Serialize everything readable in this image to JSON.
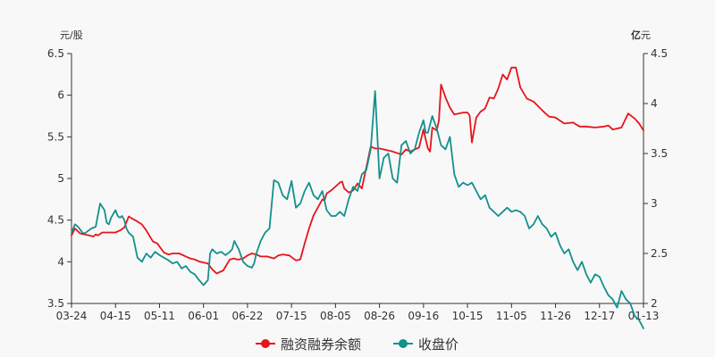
{
  "chart_data": {
    "type": "line",
    "left_axis_unit": "元/股",
    "right_axis_unit_bold": "亿",
    "right_axis_unit_rest": "元",
    "categories": [
      "03-24",
      "04-15",
      "05-11",
      "06-01",
      "06-22",
      "07-15",
      "08-05",
      "08-26",
      "09-16",
      "10-15",
      "11-05",
      "11-26",
      "12-17",
      "01-13"
    ],
    "left_ticks": [
      "3.5",
      "4",
      "4.5",
      "5",
      "5.5",
      "6",
      "6.5"
    ],
    "right_ticks": [
      "2",
      "2.5",
      "3",
      "3.5",
      "4",
      "4.5"
    ],
    "left_ylim": [
      3.5,
      6.5
    ],
    "right_ylim": [
      2,
      4.5
    ],
    "xlim": [
      0,
      13
    ],
    "legend_position": "bottom-center",
    "series": [
      {
        "name": "融资融券余额",
        "color": "#e8141b",
        "axis": "right",
        "x": [
          0.0,
          0.08,
          0.2,
          0.4,
          0.5,
          0.55,
          0.6,
          0.7,
          0.8,
          1.0,
          1.1,
          1.2,
          1.3,
          1.5,
          1.6,
          1.7,
          1.85,
          1.95,
          2.1,
          2.2,
          2.3,
          2.45,
          2.6,
          2.7,
          2.8,
          2.9,
          3.1,
          3.2,
          3.3,
          3.45,
          3.6,
          3.7,
          3.75,
          3.8,
          3.9,
          4.0,
          4.1,
          4.2,
          4.3,
          4.45,
          4.6,
          4.7,
          4.8,
          4.95,
          5.1,
          5.2,
          5.3,
          5.4,
          5.5,
          5.7,
          5.75,
          5.8,
          5.9,
          6.0,
          6.1,
          6.15,
          6.2,
          6.3,
          6.4,
          6.5,
          6.6,
          6.8,
          6.9,
          7.0,
          7.1,
          7.3,
          7.5,
          7.6,
          7.7,
          7.8,
          7.9,
          8.0,
          8.05,
          8.1,
          8.15,
          8.2,
          8.3,
          8.35,
          8.4,
          8.5,
          8.6,
          8.7,
          8.8,
          8.9,
          9.0,
          9.05,
          9.1,
          9.2,
          9.3,
          9.4,
          9.5,
          9.6,
          9.7,
          9.8,
          9.9,
          10.0,
          10.1,
          10.2,
          10.35,
          10.5,
          10.7,
          10.85,
          11.0,
          11.2,
          11.4,
          11.55,
          11.7,
          11.9,
          12.1,
          12.2,
          12.3,
          12.5,
          12.65,
          12.8,
          12.9,
          13.0
        ],
        "values": [
          2.68,
          2.75,
          2.7,
          2.68,
          2.67,
          2.69,
          2.68,
          2.71,
          2.71,
          2.71,
          2.73,
          2.76,
          2.87,
          2.82,
          2.79,
          2.73,
          2.62,
          2.6,
          2.51,
          2.49,
          2.5,
          2.5,
          2.47,
          2.45,
          2.44,
          2.42,
          2.4,
          2.34,
          2.3,
          2.33,
          2.44,
          2.45,
          2.44,
          2.44,
          2.45,
          2.48,
          2.5,
          2.49,
          2.47,
          2.47,
          2.45,
          2.48,
          2.49,
          2.48,
          2.43,
          2.44,
          2.6,
          2.75,
          2.88,
          3.04,
          3.03,
          3.1,
          3.13,
          3.17,
          3.21,
          3.22,
          3.15,
          3.11,
          3.13,
          3.2,
          3.15,
          3.57,
          3.55,
          3.55,
          3.54,
          3.52,
          3.49,
          3.54,
          3.52,
          3.54,
          3.56,
          3.74,
          3.64,
          3.55,
          3.52,
          3.76,
          3.73,
          3.83,
          4.19,
          4.06,
          3.96,
          3.89,
          3.9,
          3.91,
          3.91,
          3.88,
          3.61,
          3.86,
          3.92,
          3.95,
          4.06,
          4.05,
          4.15,
          4.29,
          4.24,
          4.36,
          4.36,
          4.16,
          4.05,
          4.02,
          3.93,
          3.87,
          3.86,
          3.8,
          3.81,
          3.77,
          3.77,
          3.76,
          3.77,
          3.78,
          3.74,
          3.76,
          3.9,
          3.85,
          3.8,
          3.73
        ]
      },
      {
        "name": "收盘价",
        "color": "#12918d",
        "axis": "left",
        "x": [
          0.0,
          0.08,
          0.15,
          0.25,
          0.3,
          0.35,
          0.45,
          0.55,
          0.65,
          0.75,
          0.8,
          0.85,
          0.9,
          1.0,
          1.05,
          1.1,
          1.15,
          1.2,
          1.25,
          1.3,
          1.4,
          1.5,
          1.6,
          1.7,
          1.8,
          1.9,
          1.95,
          2.0,
          2.1,
          2.2,
          2.3,
          2.4,
          2.5,
          2.6,
          2.7,
          2.8,
          2.9,
          3.0,
          3.1,
          3.15,
          3.2,
          3.3,
          3.4,
          3.5,
          3.6,
          3.65,
          3.7,
          3.8,
          3.9,
          4.0,
          4.1,
          4.15,
          4.2,
          4.3,
          4.4,
          4.5,
          4.6,
          4.7,
          4.8,
          4.9,
          5.0,
          5.1,
          5.2,
          5.3,
          5.4,
          5.5,
          5.6,
          5.7,
          5.8,
          5.9,
          6.0,
          6.1,
          6.2,
          6.3,
          6.4,
          6.5,
          6.6,
          6.7,
          6.8,
          6.9,
          7.0,
          7.1,
          7.2,
          7.3,
          7.4,
          7.5,
          7.6,
          7.7,
          7.8,
          7.9,
          8.0,
          8.05,
          8.1,
          8.2,
          8.3,
          8.4,
          8.5,
          8.6,
          8.7,
          8.8,
          8.9,
          9.0,
          9.1,
          9.2,
          9.3,
          9.4,
          9.5,
          9.6,
          9.7,
          9.8,
          9.9,
          10.0,
          10.1,
          10.2,
          10.3,
          10.4,
          10.5,
          10.6,
          10.7,
          10.8,
          10.9,
          11.0,
          11.1,
          11.2,
          11.3,
          11.4,
          11.5,
          11.6,
          11.7,
          11.8,
          11.9,
          12.0,
          12.1,
          12.2,
          12.3,
          12.4,
          12.5,
          12.6,
          12.7,
          12.8,
          12.9,
          13.0
        ],
        "values": [
          4.35,
          4.45,
          4.42,
          4.35,
          4.34,
          4.36,
          4.4,
          4.42,
          4.7,
          4.62,
          4.47,
          4.45,
          4.53,
          4.62,
          4.55,
          4.53,
          4.55,
          4.5,
          4.4,
          4.35,
          4.3,
          4.05,
          4.0,
          4.1,
          4.05,
          4.12,
          4.1,
          4.08,
          4.05,
          4.02,
          3.98,
          4.0,
          3.92,
          3.95,
          3.88,
          3.85,
          3.78,
          3.72,
          3.78,
          4.1,
          4.15,
          4.1,
          4.12,
          4.08,
          4.12,
          4.15,
          4.25,
          4.15,
          4.0,
          3.95,
          3.93,
          3.98,
          4.1,
          4.25,
          4.35,
          4.4,
          4.98,
          4.95,
          4.8,
          4.75,
          4.97,
          4.65,
          4.7,
          4.85,
          4.95,
          4.8,
          4.75,
          4.85,
          4.62,
          4.55,
          4.55,
          4.6,
          4.55,
          4.75,
          4.9,
          4.85,
          5.05,
          5.1,
          5.35,
          6.05,
          5.0,
          5.25,
          5.3,
          5.0,
          4.95,
          5.4,
          5.45,
          5.3,
          5.35,
          5.55,
          5.7,
          5.55,
          5.55,
          5.75,
          5.6,
          5.4,
          5.35,
          5.5,
          5.05,
          4.9,
          4.95,
          4.92,
          4.95,
          4.85,
          4.75,
          4.8,
          4.65,
          4.6,
          4.55,
          4.6,
          4.65,
          4.6,
          4.62,
          4.6,
          4.55,
          4.4,
          4.45,
          4.55,
          4.45,
          4.4,
          4.3,
          4.35,
          4.2,
          4.1,
          4.15,
          4.0,
          3.9,
          4.0,
          3.85,
          3.75,
          3.85,
          3.82,
          3.7,
          3.6,
          3.55,
          3.45,
          3.65,
          3.55,
          3.5,
          3.35,
          3.3,
          3.2
        ]
      }
    ]
  }
}
